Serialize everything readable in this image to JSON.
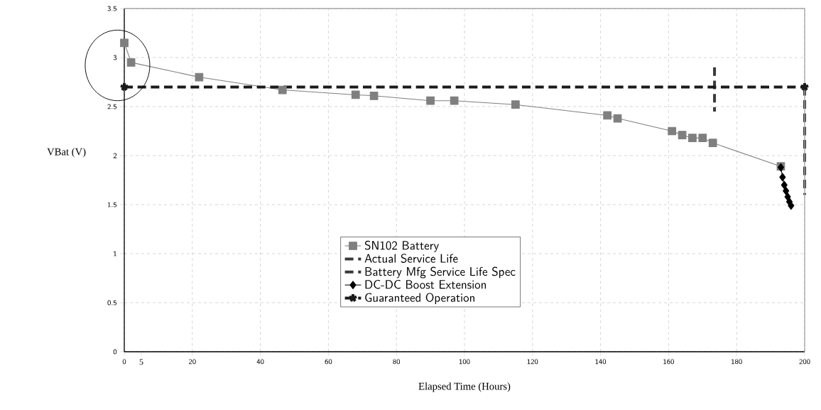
{
  "chart_data": {
    "type": "line",
    "xlabel": "Elapsed Time (Hours)",
    "ylabel": "VBat (V)",
    "xlim": [
      0,
      200
    ],
    "ylim": [
      0,
      3.5
    ],
    "xticks": [
      0,
      {
        "value": 5,
        "label": "5"
      },
      20,
      40,
      60,
      80,
      100,
      120,
      140,
      160,
      180,
      200
    ],
    "yticks": [
      0,
      0.5,
      1,
      1.5,
      2,
      2.5,
      3,
      3.5
    ],
    "grid": true,
    "legend": "bottom",
    "series": [
      {
        "name": "SN102 Battery",
        "color": "#7f7f7f",
        "marker": "square",
        "line_style": "solid",
        "x": [
          0,
          2,
          22,
          46.5,
          68,
          73.4,
          90,
          97,
          115,
          142,
          145,
          161,
          164,
          167,
          170,
          173,
          193
        ],
        "values": [
          3.15,
          2.95,
          2.8,
          2.67,
          2.62,
          2.61,
          2.56,
          2.56,
          2.52,
          2.41,
          2.38,
          2.25,
          2.21,
          2.18,
          2.18,
          2.13,
          1.89
        ]
      },
      {
        "name": "Actual Service Life",
        "color": "#3a3a3a",
        "marker": "none",
        "line_style": "dashed",
        "x": [
          173.5,
          173.5
        ],
        "values": [
          2.9,
          2.45
        ]
      },
      {
        "name": "Battery Mfg Service Life Spec",
        "color": "#3a3a3a",
        "marker": "none",
        "line_style": "dashed",
        "x": [
          200,
          200
        ],
        "values": [
          2.7,
          1.6
        ]
      },
      {
        "name": "DC-DC Boost Extension",
        "color": "#000000",
        "marker": "diamond",
        "line_style": "solid",
        "x": [
          193,
          193.5,
          194,
          194.5,
          195,
          195.5,
          196
        ],
        "values": [
          1.88,
          1.78,
          1.7,
          1.64,
          1.58,
          1.53,
          1.49
        ]
      },
      {
        "name": "Guaranteed Operation",
        "color": "#1a1a1a",
        "marker": "cross",
        "line_style": "dashed",
        "x": [
          0,
          200
        ],
        "values": [
          2.7,
          2.7
        ]
      }
    ]
  }
}
